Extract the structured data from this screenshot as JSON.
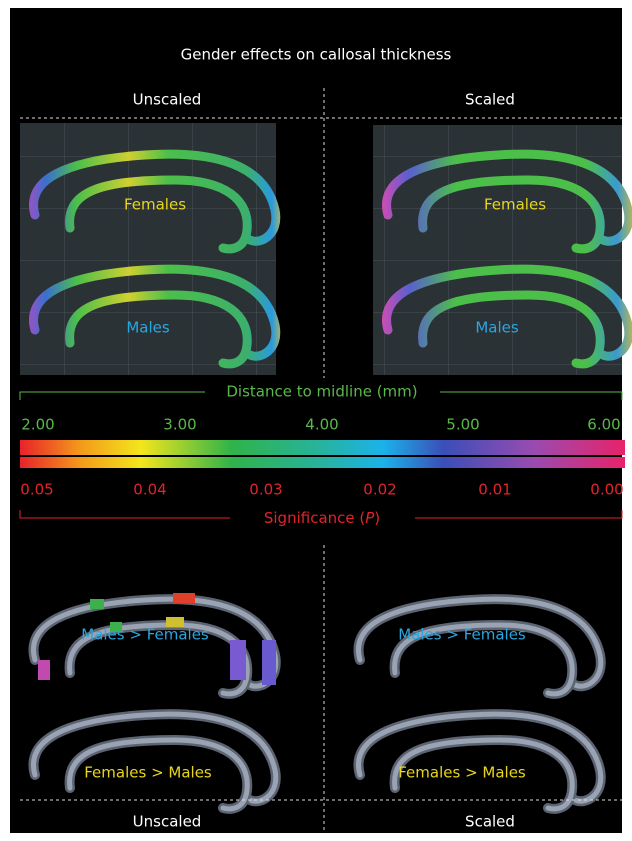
{
  "title": "Gender effects on callosal thickness",
  "top_headers": [
    "Unscaled",
    "Scaled"
  ],
  "top_panels": [
    {
      "labels": [
        "Females",
        "Males"
      ]
    },
    {
      "labels": [
        "Females",
        "Males"
      ]
    }
  ],
  "distance_scale": {
    "label": "Distance to midline (mm)",
    "ticks": [
      "2.00",
      "3.00",
      "4.00",
      "5.00",
      "6.00"
    ]
  },
  "significance_scale": {
    "label_prefix": "Significance (",
    "label_variable": "P",
    "label_suffix": ")",
    "ticks": [
      "0.05",
      "0.04",
      "0.03",
      "0.02",
      "0.01",
      "0.00"
    ]
  },
  "bottom_panels": [
    {
      "labels": [
        "Males > Females",
        "Females > Males"
      ]
    },
    {
      "labels": [
        "Males > Females",
        "Females > Males"
      ]
    }
  ],
  "bottom_headers": [
    "Unscaled",
    "Scaled"
  ]
}
